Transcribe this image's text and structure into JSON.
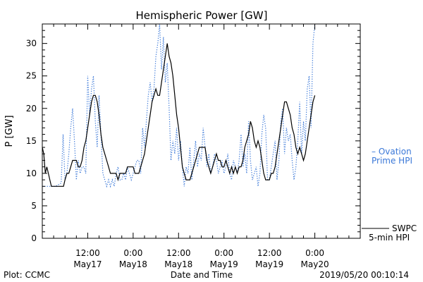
{
  "chart_data": {
    "type": "line",
    "title": "Hemispheric Power [GW]",
    "ylabel": "P [GW]",
    "xlabel": "Date and Time",
    "ylim": [
      0,
      33
    ],
    "y_ticks": [
      0,
      5,
      10,
      15,
      20,
      25,
      30
    ],
    "x_range_hours": [
      -12,
      72
    ],
    "x_ticks": [
      {
        "hour": 0,
        "time": "12:00",
        "date": "May17"
      },
      {
        "hour": 12,
        "time": "0:00",
        "date": "May18"
      },
      {
        "hour": 24,
        "time": "12:00",
        "date": "May18"
      },
      {
        "hour": 36,
        "time": "0:00",
        "date": "May19"
      },
      {
        "hour": 48,
        "time": "12:00",
        "date": "May19"
      },
      {
        "hour": 60,
        "time": "0:00",
        "date": "May20"
      }
    ],
    "series": [
      {
        "name": "Ovation Prime HPI",
        "legend_lines": [
          "– Ovation",
          "Prime HPI"
        ],
        "color": "#3b78d8",
        "style": "dotted",
        "points": [
          [
            -12,
            8
          ],
          [
            -10.5,
            8
          ],
          [
            -9.5,
            8
          ],
          [
            -8.5,
            8
          ],
          [
            -7,
            8.5
          ],
          [
            -6.5,
            16
          ],
          [
            -6,
            9
          ],
          [
            -5.5,
            10
          ],
          [
            -5,
            13
          ],
          [
            -4.5,
            17
          ],
          [
            -4,
            20
          ],
          [
            -3.5,
            15
          ],
          [
            -3,
            9
          ],
          [
            -2.5,
            12
          ],
          [
            -2,
            10
          ],
          [
            -1.5,
            11
          ],
          [
            -1,
            11
          ],
          [
            -0.5,
            10
          ],
          [
            0,
            25
          ],
          [
            0.5,
            19
          ],
          [
            1,
            23
          ],
          [
            1.5,
            25
          ],
          [
            2,
            18
          ],
          [
            2.5,
            14
          ],
          [
            3,
            22
          ],
          [
            3.5,
            16
          ],
          [
            4,
            10
          ],
          [
            4.5,
            9
          ],
          [
            5,
            8
          ],
          [
            5.5,
            9
          ],
          [
            6,
            8
          ],
          [
            6.5,
            9
          ],
          [
            7,
            8
          ],
          [
            7.5,
            10
          ],
          [
            8,
            11
          ],
          [
            8.5,
            9
          ],
          [
            9,
            9
          ],
          [
            9.5,
            10
          ],
          [
            10,
            9
          ],
          [
            10.5,
            11
          ],
          [
            11,
            10
          ],
          [
            11.5,
            9
          ],
          [
            12,
            10
          ],
          [
            12.5,
            11
          ],
          [
            13,
            12
          ],
          [
            13.5,
            12
          ],
          [
            14,
            10
          ],
          [
            14.5,
            17
          ],
          [
            15,
            14
          ],
          [
            15.5,
            18
          ],
          [
            16,
            22
          ],
          [
            16.5,
            24
          ],
          [
            17,
            21
          ],
          [
            17.5,
            23
          ],
          [
            18,
            28
          ],
          [
            18.5,
            30
          ],
          [
            19,
            33
          ],
          [
            19.5,
            26
          ],
          [
            20,
            31
          ],
          [
            20.5,
            24
          ],
          [
            21,
            27
          ],
          [
            21.5,
            20
          ],
          [
            22,
            12
          ],
          [
            22.5,
            15
          ],
          [
            23,
            13
          ],
          [
            23.5,
            17
          ],
          [
            24,
            12
          ],
          [
            24.5,
            15
          ],
          [
            25,
            11
          ],
          [
            25.5,
            8
          ],
          [
            26,
            11
          ],
          [
            26.5,
            10
          ],
          [
            27,
            14
          ],
          [
            27.5,
            9
          ],
          [
            28,
            12
          ],
          [
            28.5,
            15
          ],
          [
            29,
            11
          ],
          [
            29.5,
            13
          ],
          [
            30,
            12
          ],
          [
            30.5,
            17
          ],
          [
            31,
            14
          ],
          [
            31.5,
            11
          ],
          [
            32,
            13
          ],
          [
            32.5,
            10
          ],
          [
            33,
            11
          ],
          [
            33.5,
            13
          ],
          [
            34,
            12
          ],
          [
            34.5,
            10
          ],
          [
            35,
            11
          ],
          [
            35.5,
            12
          ],
          [
            36,
            10
          ],
          [
            36.5,
            11
          ],
          [
            37,
            13
          ],
          [
            37.5,
            10
          ],
          [
            38,
            9
          ],
          [
            38.5,
            12
          ],
          [
            39,
            11
          ],
          [
            39.5,
            10
          ],
          [
            40,
            12
          ],
          [
            40.5,
            16
          ],
          [
            41,
            11
          ],
          [
            41.5,
            13
          ],
          [
            42,
            10
          ],
          [
            42.5,
            18
          ],
          [
            43,
            12
          ],
          [
            43.5,
            9
          ],
          [
            44,
            10
          ],
          [
            44.5,
            11
          ],
          [
            45,
            8
          ],
          [
            45.5,
            10
          ],
          [
            46,
            16
          ],
          [
            46.5,
            19
          ],
          [
            47,
            17
          ],
          [
            47.5,
            9
          ],
          [
            48,
            9
          ],
          [
            48.5,
            11
          ],
          [
            49,
            13
          ],
          [
            49.5,
            15
          ],
          [
            50,
            9
          ],
          [
            50.5,
            12
          ],
          [
            51,
            18
          ],
          [
            51.5,
            20
          ],
          [
            52,
            13
          ],
          [
            52.5,
            17
          ],
          [
            53,
            15
          ],
          [
            53.5,
            16
          ],
          [
            54,
            12
          ],
          [
            54.5,
            9
          ],
          [
            55,
            11
          ],
          [
            55.5,
            15
          ],
          [
            56,
            21
          ],
          [
            56.5,
            13
          ],
          [
            57,
            18
          ],
          [
            57.5,
            15
          ],
          [
            58,
            23
          ],
          [
            58.5,
            25
          ],
          [
            59,
            17
          ],
          [
            59.5,
            30
          ],
          [
            60,
            33
          ]
        ]
      },
      {
        "name": "SWPC 5-min HPI",
        "legend_lines": [
          "SWPC",
          "5-min HPI"
        ],
        "color": "#000000",
        "style": "solid",
        "points": [
          [
            -12,
            14
          ],
          [
            -11.6,
            13
          ],
          [
            -11.2,
            10
          ],
          [
            -10.8,
            11
          ],
          [
            -10.4,
            10
          ],
          [
            -10,
            9
          ],
          [
            -9.6,
            8
          ],
          [
            -9,
            8
          ],
          [
            -8,
            8
          ],
          [
            -7,
            8
          ],
          [
            -6.4,
            8
          ],
          [
            -6,
            9
          ],
          [
            -5.5,
            10
          ],
          [
            -5,
            10
          ],
          [
            -4.5,
            11
          ],
          [
            -4,
            12
          ],
          [
            -3.5,
            12
          ],
          [
            -3,
            12
          ],
          [
            -2.5,
            11
          ],
          [
            -2,
            11
          ],
          [
            -1.5,
            12
          ],
          [
            -1,
            14
          ],
          [
            -0.5,
            15
          ],
          [
            0,
            17
          ],
          [
            0.5,
            19
          ],
          [
            1,
            21
          ],
          [
            1.5,
            22
          ],
          [
            2,
            22
          ],
          [
            2.5,
            21
          ],
          [
            3,
            19
          ],
          [
            3.5,
            16
          ],
          [
            4,
            14
          ],
          [
            4.5,
            13
          ],
          [
            5,
            12
          ],
          [
            5.5,
            11
          ],
          [
            6,
            10
          ],
          [
            6.5,
            10
          ],
          [
            7,
            10
          ],
          [
            7.5,
            10
          ],
          [
            8,
            9
          ],
          [
            8.5,
            10
          ],
          [
            9,
            10
          ],
          [
            9.5,
            10
          ],
          [
            10,
            10
          ],
          [
            10.5,
            11
          ],
          [
            11,
            11
          ],
          [
            11.5,
            11
          ],
          [
            12,
            11
          ],
          [
            12.5,
            10
          ],
          [
            13,
            10
          ],
          [
            13.5,
            10
          ],
          [
            14,
            11
          ],
          [
            14.5,
            12
          ],
          [
            15,
            13
          ],
          [
            15.5,
            15
          ],
          [
            16,
            17
          ],
          [
            16.5,
            19
          ],
          [
            17,
            21
          ],
          [
            17.5,
            22
          ],
          [
            18,
            23
          ],
          [
            18.5,
            22
          ],
          [
            19,
            22
          ],
          [
            19.5,
            24
          ],
          [
            20,
            26
          ],
          [
            20.5,
            28
          ],
          [
            21,
            30
          ],
          [
            21.5,
            28
          ],
          [
            22,
            27
          ],
          [
            22.5,
            25
          ],
          [
            23,
            22
          ],
          [
            23.5,
            19
          ],
          [
            24,
            17
          ],
          [
            24.5,
            14
          ],
          [
            25,
            11
          ],
          [
            25.5,
            10
          ],
          [
            26,
            9
          ],
          [
            26.5,
            9
          ],
          [
            27,
            9
          ],
          [
            27.5,
            10
          ],
          [
            28,
            11
          ],
          [
            28.5,
            12
          ],
          [
            29,
            13
          ],
          [
            29.5,
            14
          ],
          [
            30,
            14
          ],
          [
            30.5,
            14
          ],
          [
            31,
            14
          ],
          [
            31.5,
            12
          ],
          [
            32,
            11
          ],
          [
            32.5,
            10
          ],
          [
            33,
            11
          ],
          [
            33.5,
            12
          ],
          [
            34,
            13
          ],
          [
            34.5,
            12
          ],
          [
            35,
            12
          ],
          [
            35.5,
            11
          ],
          [
            36,
            11
          ],
          [
            36.5,
            12
          ],
          [
            37,
            11
          ],
          [
            37.5,
            10
          ],
          [
            38,
            11
          ],
          [
            38.5,
            10
          ],
          [
            39,
            11
          ],
          [
            39.5,
            10
          ],
          [
            40,
            11
          ],
          [
            40.5,
            11
          ],
          [
            41,
            12
          ],
          [
            41.5,
            14
          ],
          [
            42,
            15
          ],
          [
            42.5,
            16
          ],
          [
            43,
            18
          ],
          [
            43.5,
            17
          ],
          [
            44,
            15
          ],
          [
            44.5,
            14
          ],
          [
            45,
            15
          ],
          [
            45.5,
            14
          ],
          [
            46,
            12
          ],
          [
            46.5,
            10
          ],
          [
            47,
            9
          ],
          [
            47.5,
            9
          ],
          [
            48,
            9
          ],
          [
            48.5,
            10
          ],
          [
            49,
            10
          ],
          [
            49.5,
            11
          ],
          [
            50,
            13
          ],
          [
            50.5,
            15
          ],
          [
            51,
            17
          ],
          [
            51.5,
            19
          ],
          [
            52,
            21
          ],
          [
            52.5,
            21
          ],
          [
            53,
            20
          ],
          [
            53.5,
            19
          ],
          [
            54,
            17
          ],
          [
            54.5,
            16
          ],
          [
            55,
            14
          ],
          [
            55.5,
            13
          ],
          [
            56,
            14
          ],
          [
            56.5,
            13
          ],
          [
            57,
            12
          ],
          [
            57.5,
            13
          ],
          [
            58,
            15
          ],
          [
            58.5,
            17
          ],
          [
            59,
            19
          ],
          [
            59.5,
            21
          ],
          [
            60,
            22
          ]
        ]
      }
    ]
  },
  "footer": {
    "left": "Plot: CCMC",
    "right": "2019/05/20 00:10:14"
  }
}
